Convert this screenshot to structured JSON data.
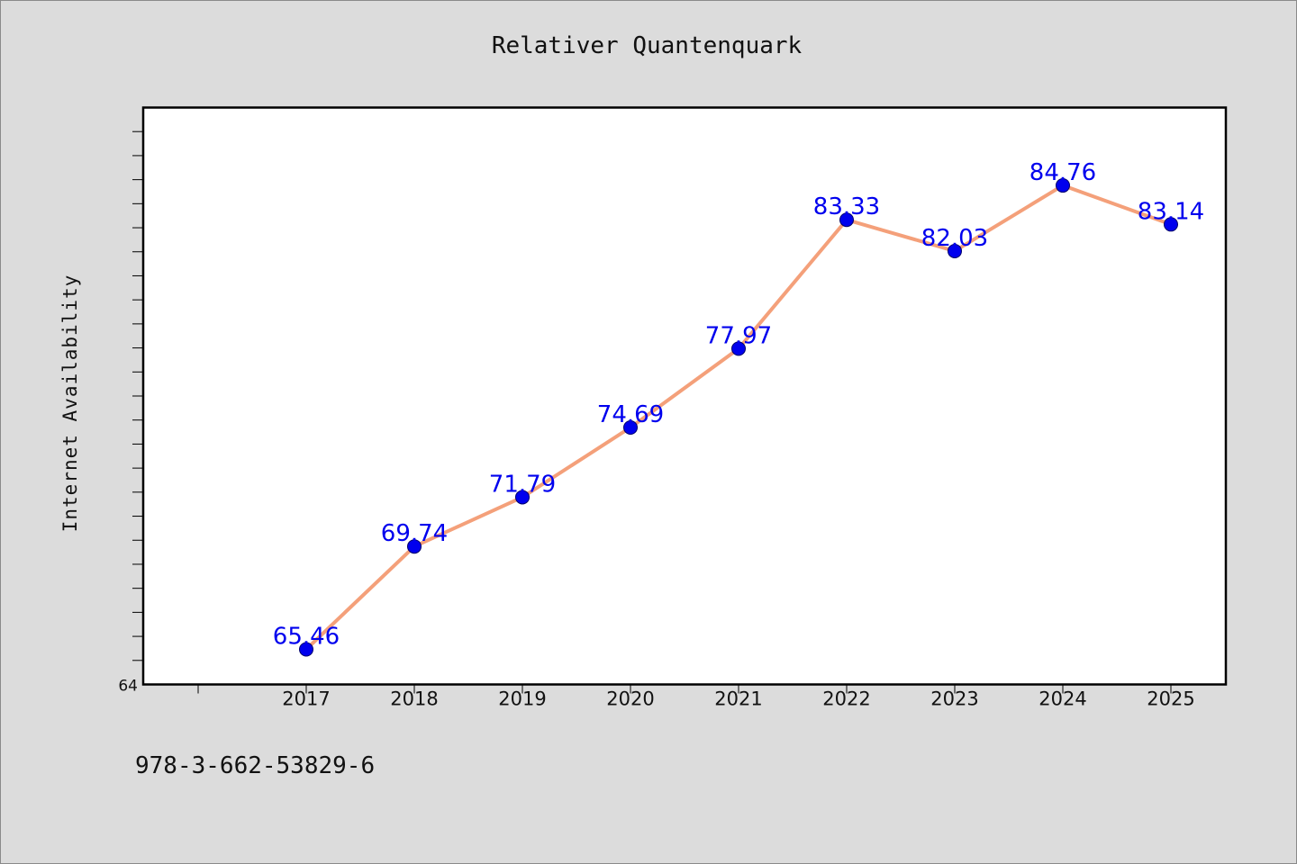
{
  "chart_data": {
    "type": "line",
    "title": "Relativer Quantenquark",
    "xlabel": "",
    "ylabel": "Internet Availability",
    "categories": [
      "2017",
      "2018",
      "2019",
      "2020",
      "2021",
      "2022",
      "2023",
      "2024",
      "2025"
    ],
    "series": [
      {
        "values": [
          65.46,
          69.74,
          71.79,
          74.69,
          77.97,
          83.33,
          82.03,
          84.76,
          83.14
        ],
        "labels": [
          "65.46",
          "69.74",
          "71.79",
          "74.69",
          "77.97",
          "83.33",
          "82.03",
          "84.76",
          "83.14"
        ],
        "line_color": "#f4a07a",
        "marker_color": "#0000ee",
        "label_color": "#0000ee"
      }
    ],
    "ylim": [
      64,
      88
    ],
    "y_tick_labels": [
      "64"
    ],
    "grid": false,
    "legend": "none"
  },
  "footer": {
    "isbn": "978-3-662-53829-6"
  }
}
